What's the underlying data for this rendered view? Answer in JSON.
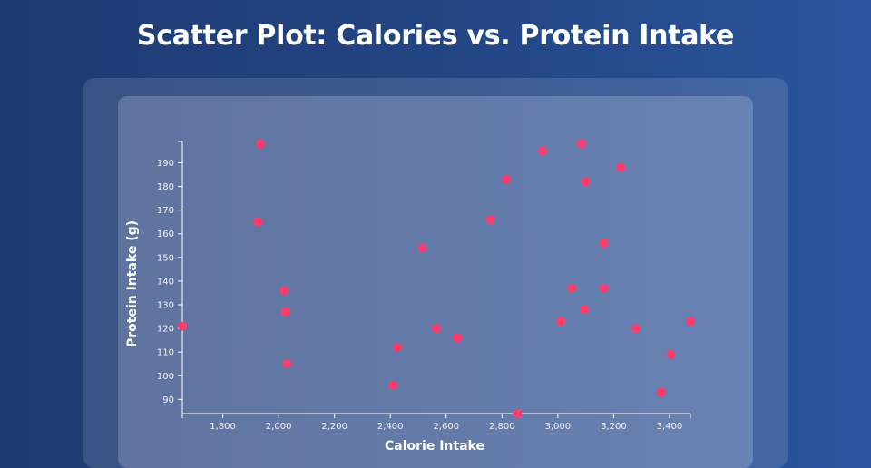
{
  "page": {
    "title": "Scatter Plot: Calories vs. Protein Intake"
  },
  "chart_data": {
    "type": "scatter",
    "title": "Scatter Plot: Calories vs. Protein Intake",
    "xlabel": "Calorie Intake",
    "ylabel": "Protein Intake (g)",
    "xlim": [
      1655,
      3475
    ],
    "ylim": [
      84,
      199
    ],
    "xticks": [
      "1,800",
      "2,000",
      "2,200",
      "2,400",
      "2,600",
      "2,800",
      "3,000",
      "3,200",
      "3,400"
    ],
    "yticks": [
      "90",
      "100",
      "110",
      "120",
      "130",
      "140",
      "150",
      "160",
      "170",
      "180",
      "190"
    ],
    "xtick_values": [
      1800,
      2000,
      2200,
      2400,
      2600,
      2800,
      3000,
      3200,
      3400
    ],
    "ytick_values": [
      90,
      100,
      110,
      120,
      130,
      140,
      150,
      160,
      170,
      180,
      190
    ],
    "point_color": "#ff3b6b",
    "series": [
      {
        "name": "Calories vs. Protein",
        "points": [
          [
            1655,
            121
          ],
          [
            1925,
            165
          ],
          [
            1935,
            198
          ],
          [
            2020,
            136
          ],
          [
            2025,
            127
          ],
          [
            2030,
            105
          ],
          [
            2410,
            96
          ],
          [
            2425,
            112
          ],
          [
            2515,
            154
          ],
          [
            2565,
            120
          ],
          [
            2640,
            116
          ],
          [
            2760,
            166
          ],
          [
            2815,
            183
          ],
          [
            2855,
            84
          ],
          [
            2945,
            195
          ],
          [
            3010,
            123
          ],
          [
            3050,
            137
          ],
          [
            3085,
            198
          ],
          [
            3095,
            128
          ],
          [
            3100,
            182
          ],
          [
            3165,
            137
          ],
          [
            3165,
            156
          ],
          [
            3225,
            188
          ],
          [
            3280,
            120
          ],
          [
            3370,
            93
          ],
          [
            3405,
            109
          ],
          [
            3475,
            123
          ]
        ]
      }
    ]
  }
}
